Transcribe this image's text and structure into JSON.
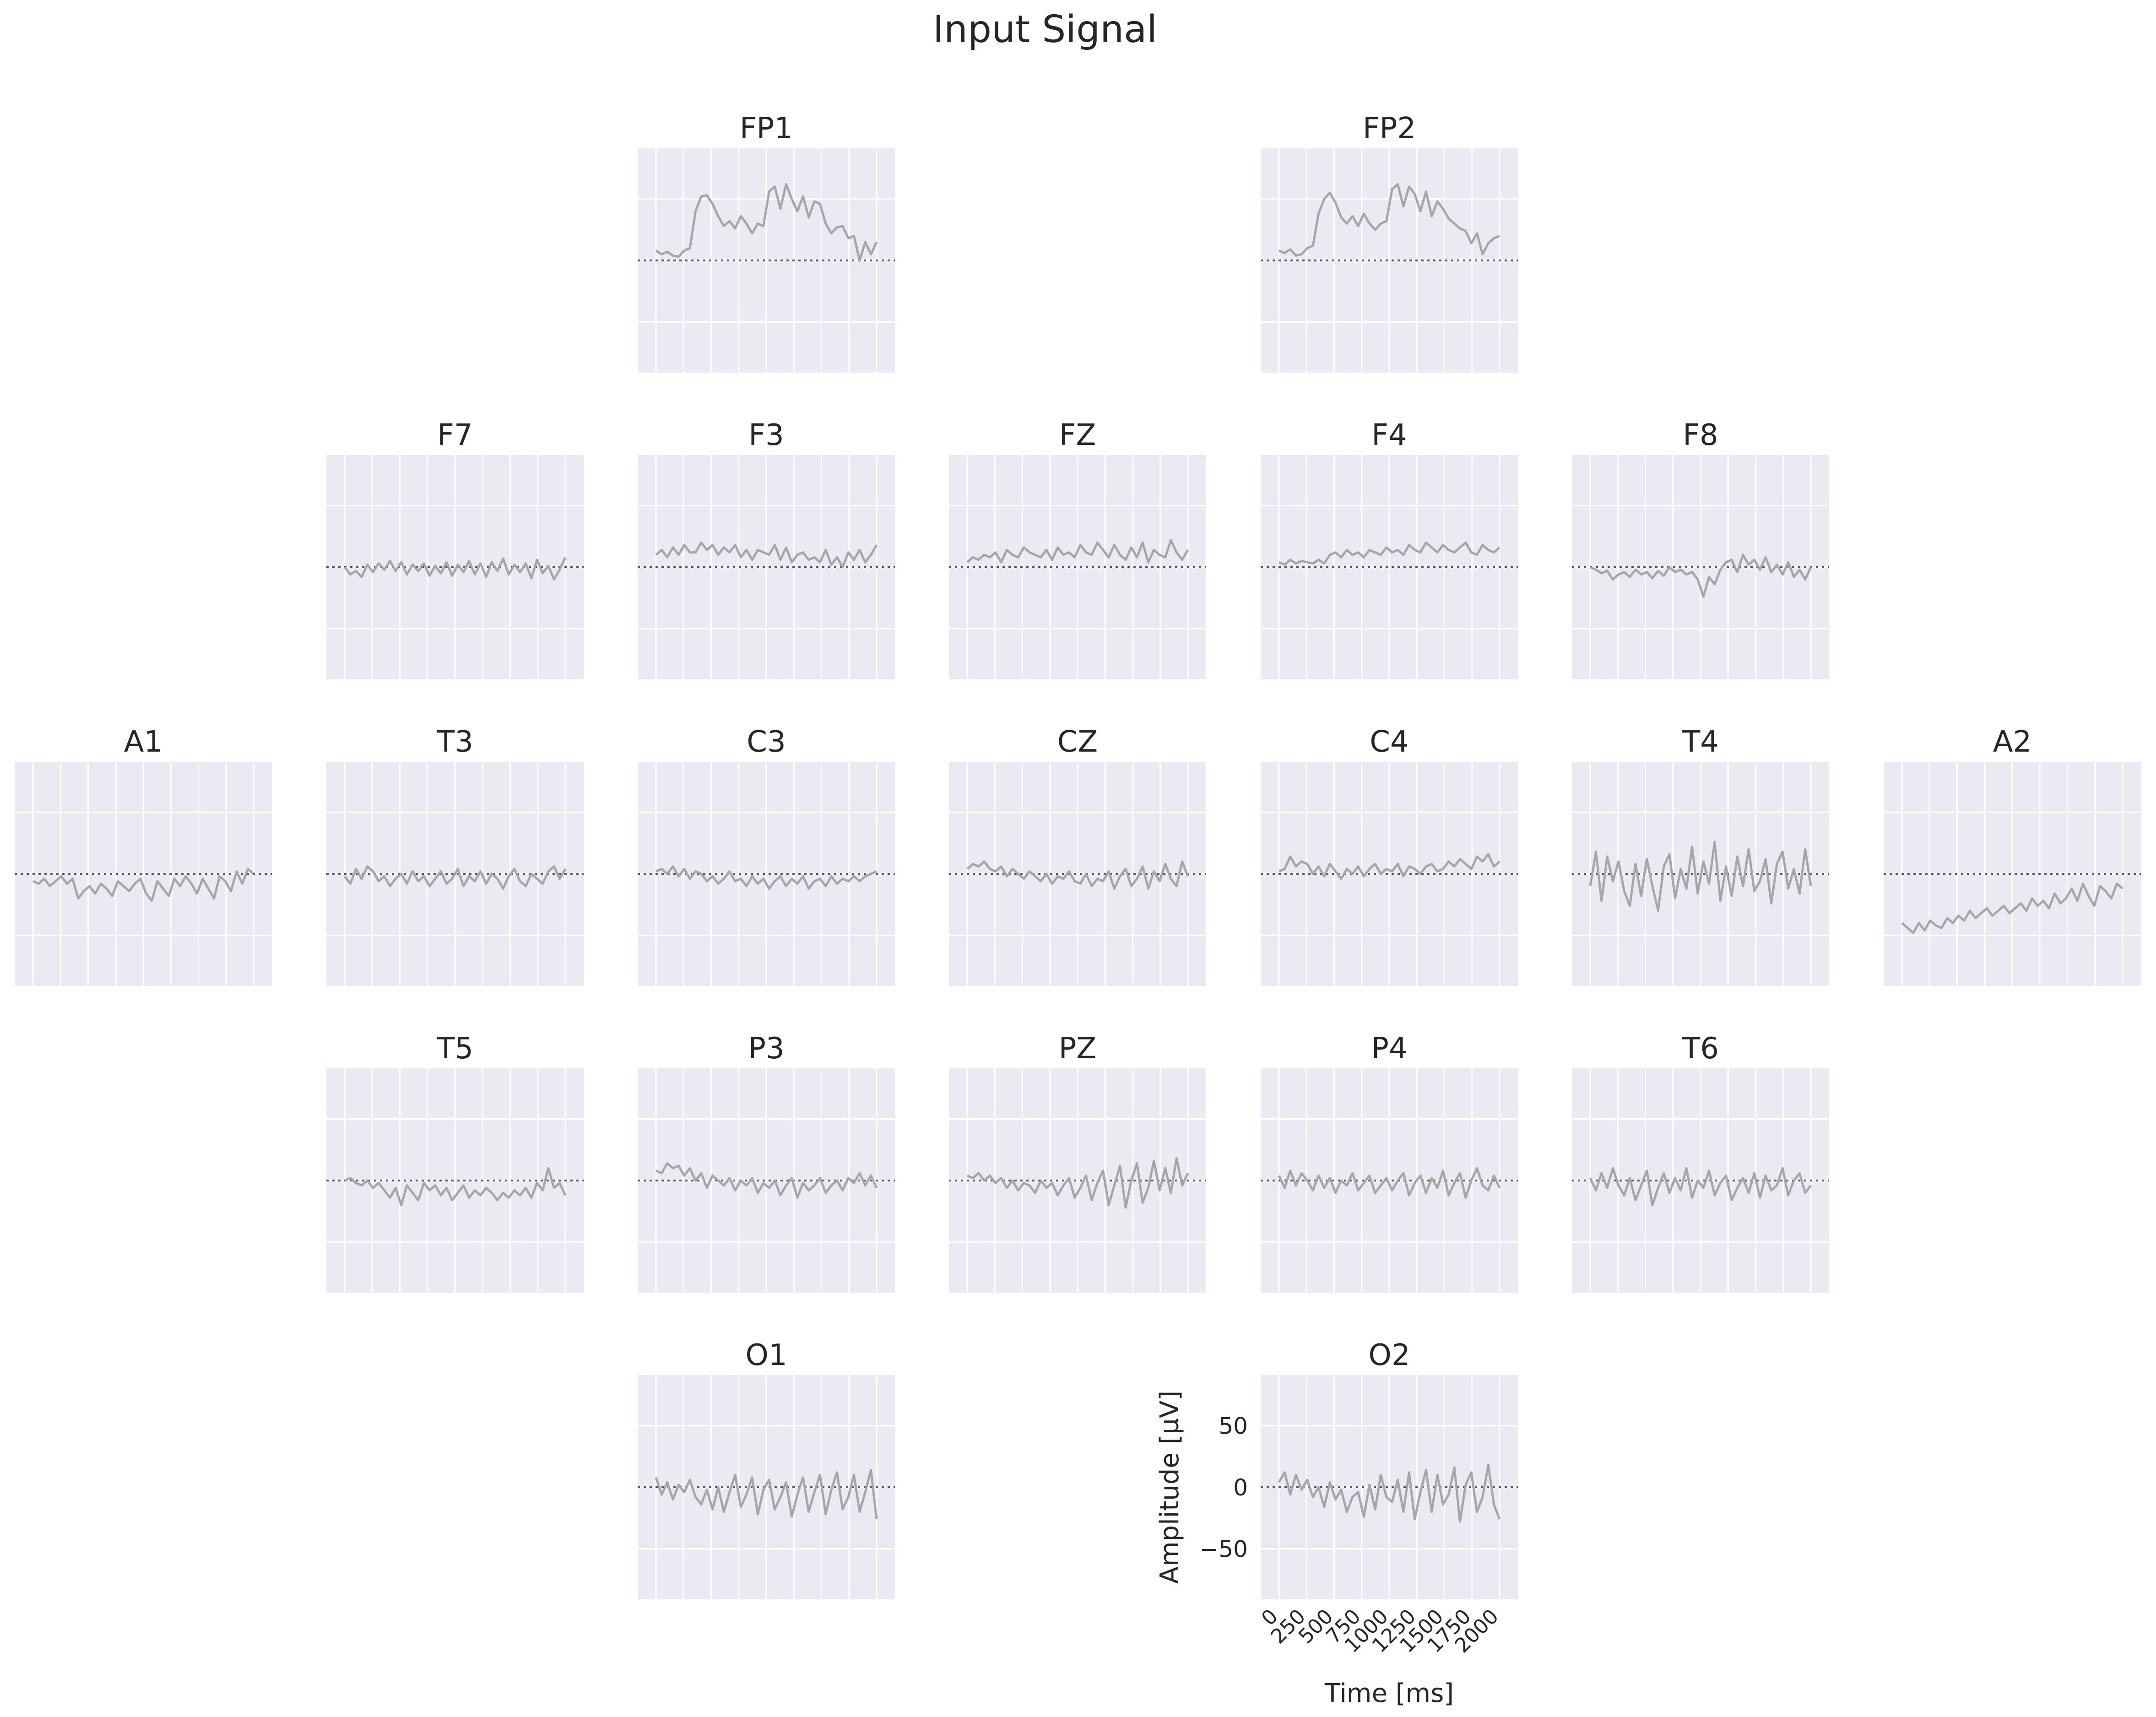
{
  "figure": {
    "title": "Input Signal",
    "colors": {
      "panel_background": "#eaeaf2",
      "grid": "#ffffff",
      "signal": "#a6a6a6",
      "zero_line": "#595959",
      "text": "#262626"
    }
  },
  "chart_data": {
    "type": "line",
    "title": "Input Signal",
    "layout": "EEG 10-20 montage, one small-multiple panel per channel",
    "xlabel": "Time [ms]",
    "ylabel": "Amplitude [µV]",
    "xlim": [
      0,
      2000
    ],
    "ylim": [
      -80,
      80
    ],
    "xticks": [
      0,
      250,
      500,
      750,
      1000,
      1250,
      1500,
      1750,
      2000
    ],
    "yticks": [
      -50,
      0,
      50
    ],
    "ytick_labels": [
      "−50",
      "0",
      "50"
    ],
    "grid": true,
    "zero_line": "dotted",
    "axis_labels_shown_on": "O2",
    "channels": [
      {
        "name": "FP1",
        "grid_row": 0,
        "grid_col": 2,
        "values": [
          8,
          5,
          7,
          4,
          3,
          8,
          10,
          40,
          52,
          53,
          46,
          36,
          28,
          32,
          26,
          36,
          30,
          22,
          30,
          28,
          56,
          60,
          42,
          62,
          50,
          40,
          52,
          35,
          48,
          46,
          30,
          22,
          27,
          28,
          18,
          20,
          0,
          15,
          5,
          15
        ]
      },
      {
        "name": "FP2",
        "grid_row": 0,
        "grid_col": 4,
        "values": [
          8,
          6,
          9,
          4,
          5,
          10,
          12,
          38,
          50,
          55,
          47,
          35,
          30,
          36,
          28,
          38,
          30,
          25,
          30,
          32,
          58,
          62,
          44,
          60,
          54,
          40,
          56,
          36,
          48,
          42,
          34,
          30,
          26,
          24,
          14,
          22,
          5,
          14,
          18,
          20
        ]
      },
      {
        "name": "F7",
        "grid_row": 1,
        "grid_col": 1,
        "values": [
          0,
          -6,
          -3,
          -8,
          2,
          -4,
          3,
          -2,
          5,
          -3,
          4,
          -6,
          2,
          -3,
          3,
          -7,
          1,
          -5,
          4,
          -7,
          2,
          -4,
          5,
          -6,
          3,
          -8,
          4,
          -3,
          7,
          -6,
          2,
          -4,
          3,
          -9,
          6,
          -5,
          1,
          -10,
          -2,
          8
        ]
      },
      {
        "name": "F3",
        "grid_row": 1,
        "grid_col": 2,
        "values": [
          10,
          14,
          8,
          16,
          10,
          18,
          12,
          12,
          20,
          14,
          18,
          10,
          16,
          12,
          18,
          8,
          14,
          6,
          14,
          12,
          10,
          18,
          6,
          16,
          4,
          10,
          12,
          6,
          8,
          4,
          14,
          2,
          8,
          0,
          12,
          6,
          14,
          4,
          10,
          18
        ]
      },
      {
        "name": "FZ",
        "grid_row": 1,
        "grid_col": 3,
        "values": [
          4,
          8,
          6,
          10,
          8,
          12,
          4,
          14,
          10,
          8,
          16,
          12,
          10,
          8,
          14,
          6,
          16,
          10,
          12,
          8,
          18,
          12,
          10,
          20,
          14,
          8,
          18,
          10,
          6,
          16,
          8,
          20,
          4,
          14,
          10,
          8,
          22,
          12,
          6,
          14
        ]
      },
      {
        "name": "F4",
        "grid_row": 1,
        "grid_col": 4,
        "values": [
          4,
          2,
          6,
          3,
          5,
          4,
          3,
          6,
          3,
          10,
          12,
          8,
          14,
          10,
          12,
          8,
          14,
          12,
          10,
          16,
          12,
          14,
          10,
          18,
          14,
          12,
          20,
          16,
          12,
          18,
          14,
          12,
          16,
          20,
          12,
          10,
          18,
          14,
          12,
          16
        ]
      },
      {
        "name": "F8",
        "grid_row": 1,
        "grid_col": 5,
        "values": [
          0,
          -2,
          -5,
          -3,
          -10,
          -6,
          -4,
          -8,
          -2,
          -6,
          -4,
          -9,
          -3,
          -7,
          0,
          -4,
          -2,
          -6,
          -4,
          -10,
          -24,
          -8,
          -14,
          -2,
          4,
          6,
          -4,
          10,
          2,
          6,
          -2,
          8,
          -4,
          2,
          -6,
          4,
          -8,
          -2,
          -10,
          0
        ]
      },
      {
        "name": "A1",
        "grid_row": 2,
        "grid_col": 0,
        "values": [
          -6,
          -8,
          -4,
          -10,
          -6,
          -2,
          -8,
          -4,
          -20,
          -14,
          -10,
          -16,
          -8,
          -12,
          -18,
          -6,
          -10,
          -14,
          -8,
          -4,
          -16,
          -22,
          -6,
          -12,
          -18,
          -4,
          -10,
          -2,
          -8,
          -16,
          -4,
          -12,
          -20,
          -2,
          -6,
          -14,
          2,
          -8,
          4,
          0
        ]
      },
      {
        "name": "T3",
        "grid_row": 2,
        "grid_col": 1,
        "values": [
          -2,
          -8,
          4,
          -4,
          6,
          2,
          -6,
          -2,
          -10,
          -4,
          0,
          -8,
          2,
          -6,
          -2,
          -10,
          -4,
          2,
          -8,
          -4,
          4,
          -10,
          -2,
          -6,
          2,
          -8,
          0,
          -4,
          -12,
          -2,
          4,
          -6,
          -10,
          0,
          -4,
          -8,
          2,
          6,
          -4,
          4
        ]
      },
      {
        "name": "C3",
        "grid_row": 2,
        "grid_col": 2,
        "values": [
          2,
          4,
          0,
          6,
          -2,
          4,
          -4,
          2,
          0,
          -6,
          -2,
          -8,
          -4,
          2,
          -6,
          -4,
          -10,
          -2,
          -8,
          -4,
          -12,
          -6,
          -2,
          -10,
          -4,
          -8,
          -2,
          -12,
          -6,
          -4,
          -10,
          -2,
          -8,
          -4,
          -6,
          -2,
          -6,
          -2,
          0,
          2
        ]
      },
      {
        "name": "CZ",
        "grid_row": 2,
        "grid_col": 3,
        "values": [
          4,
          8,
          6,
          10,
          4,
          2,
          6,
          -2,
          4,
          0,
          -4,
          2,
          -2,
          -6,
          0,
          -8,
          -2,
          -4,
          2,
          -6,
          -8,
          0,
          -10,
          -4,
          -6,
          2,
          -12,
          -2,
          4,
          -10,
          -4,
          6,
          -12,
          2,
          -6,
          8,
          -4,
          -10,
          10,
          -2
        ]
      },
      {
        "name": "C4",
        "grid_row": 2,
        "grid_col": 4,
        "values": [
          2,
          4,
          14,
          6,
          10,
          8,
          0,
          6,
          -2,
          8,
          2,
          -4,
          4,
          0,
          6,
          -2,
          4,
          8,
          0,
          4,
          2,
          8,
          -2,
          6,
          4,
          0,
          6,
          8,
          2,
          4,
          10,
          6,
          12,
          8,
          4,
          14,
          10,
          16,
          6,
          10
        ]
      },
      {
        "name": "T4",
        "grid_row": 2,
        "grid_col": 5,
        "values": [
          -10,
          18,
          -22,
          14,
          -6,
          10,
          -14,
          -26,
          8,
          -18,
          12,
          -10,
          -30,
          6,
          16,
          -20,
          4,
          -12,
          22,
          -16,
          10,
          -8,
          26,
          -22,
          6,
          -18,
          14,
          -10,
          20,
          -14,
          -6,
          12,
          -24,
          8,
          18,
          -12,
          4,
          -16,
          20,
          -10
        ]
      },
      {
        "name": "A2",
        "grid_row": 2,
        "grid_col": 6,
        "values": [
          -40,
          -44,
          -48,
          -40,
          -46,
          -38,
          -42,
          -44,
          -36,
          -40,
          -34,
          -38,
          -30,
          -36,
          -32,
          -28,
          -34,
          -30,
          -26,
          -32,
          -28,
          -24,
          -30,
          -20,
          -26,
          -22,
          -28,
          -16,
          -24,
          -20,
          -12,
          -22,
          -8,
          -18,
          -26,
          -10,
          -14,
          -20,
          -8,
          -12
        ]
      },
      {
        "name": "T5",
        "grid_row": 3,
        "grid_col": 1,
        "values": [
          0,
          2,
          -2,
          -4,
          0,
          -6,
          -2,
          -8,
          -14,
          -6,
          -20,
          -4,
          -10,
          -16,
          -2,
          -8,
          -4,
          -12,
          -6,
          -16,
          -10,
          -4,
          -14,
          -8,
          -12,
          -6,
          -10,
          -16,
          -10,
          -14,
          -8,
          -12,
          -6,
          -14,
          -2,
          -8,
          10,
          -6,
          -2,
          -12
        ]
      },
      {
        "name": "P3",
        "grid_row": 3,
        "grid_col": 2,
        "values": [
          8,
          6,
          14,
          10,
          12,
          4,
          10,
          0,
          6,
          -6,
          4,
          0,
          -4,
          2,
          -8,
          0,
          -4,
          2,
          -10,
          -2,
          -6,
          0,
          -12,
          -4,
          2,
          -14,
          -2,
          -8,
          -4,
          2,
          -10,
          -4,
          0,
          -8,
          2,
          -2,
          6,
          -4,
          4,
          -6
        ]
      },
      {
        "name": "PZ",
        "grid_row": 3,
        "grid_col": 3,
        "values": [
          4,
          2,
          6,
          0,
          4,
          -2,
          2,
          -6,
          0,
          -8,
          -2,
          -4,
          -10,
          0,
          -6,
          -2,
          -12,
          -4,
          2,
          -14,
          -6,
          4,
          -16,
          -2,
          8,
          -20,
          -4,
          12,
          -22,
          0,
          14,
          -18,
          -6,
          16,
          -8,
          10,
          -10,
          18,
          -4,
          6
        ]
      },
      {
        "name": "P4",
        "grid_row": 3,
        "grid_col": 4,
        "values": [
          4,
          -6,
          8,
          -4,
          6,
          0,
          -8,
          4,
          -6,
          2,
          -10,
          0,
          -4,
          6,
          -8,
          -2,
          4,
          -10,
          -4,
          2,
          -8,
          0,
          6,
          -12,
          -2,
          4,
          -10,
          2,
          -6,
          8,
          -12,
          -2,
          6,
          -14,
          0,
          10,
          -4,
          -8,
          4,
          -6
        ]
      },
      {
        "name": "T6",
        "grid_row": 3,
        "grid_col": 5,
        "values": [
          2,
          -8,
          6,
          -6,
          10,
          -4,
          -12,
          2,
          -16,
          -4,
          8,
          -20,
          -6,
          6,
          -10,
          2,
          -8,
          10,
          -14,
          0,
          -6,
          8,
          -12,
          -2,
          4,
          -16,
          -6,
          2,
          -10,
          6,
          -14,
          4,
          -8,
          -4,
          10,
          -12,
          0,
          6,
          -10,
          -4
        ]
      },
      {
        "name": "O1",
        "grid_row": 4,
        "grid_col": 2,
        "values": [
          8,
          -6,
          4,
          -10,
          2,
          -4,
          6,
          -8,
          -14,
          -2,
          -18,
          0,
          -20,
          -4,
          10,
          -16,
          -6,
          8,
          -22,
          -2,
          6,
          -18,
          -8,
          4,
          -24,
          -6,
          8,
          -20,
          -4,
          10,
          -22,
          -2,
          12,
          -18,
          -8,
          10,
          -20,
          -4,
          14,
          -26
        ]
      },
      {
        "name": "O2",
        "grid_row": 4,
        "grid_col": 4,
        "values": [
          4,
          12,
          -6,
          10,
          -2,
          6,
          -8,
          0,
          -16,
          4,
          -10,
          -2,
          -20,
          -8,
          -4,
          -24,
          2,
          -18,
          10,
          -8,
          -12,
          6,
          -20,
          12,
          -26,
          -4,
          14,
          -20,
          10,
          -14,
          -6,
          16,
          -28,
          2,
          12,
          -20,
          -8,
          18,
          -14,
          -26
        ]
      }
    ]
  }
}
